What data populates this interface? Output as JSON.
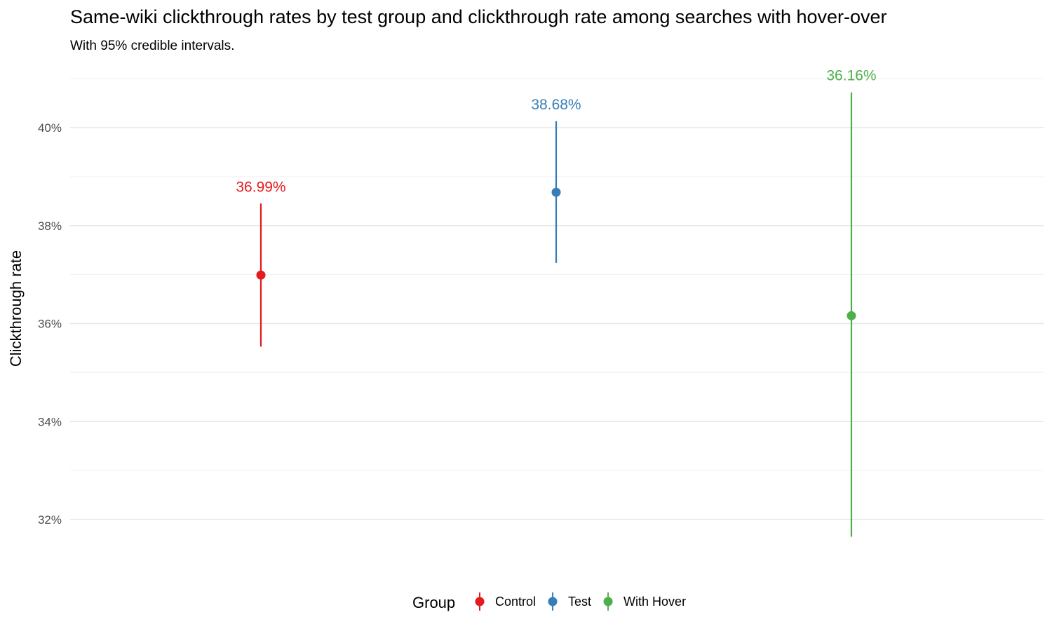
{
  "title": "Same-wiki clickthrough rates by test group and clickthrough rate among searches with hover-over",
  "subtitle": "With 95% credible intervals.",
  "chart_data": {
    "type": "pointrange",
    "title": "Same-wiki clickthrough rates by test group and clickthrough rate among searches with hover-over",
    "subtitle": "With 95% credible intervals.",
    "ylabel": "Clickthrough rate",
    "xlabel": "",
    "ylim": [
      31.2,
      41.0
    ],
    "y_ticks": [
      32,
      34,
      36,
      38,
      40
    ],
    "y_tick_labels": [
      "32%",
      "34%",
      "36%",
      "38%",
      "40%"
    ],
    "grid": true,
    "legend_position": "bottom",
    "legend_title": "Group",
    "series": [
      {
        "name": "Control",
        "color": "#e41a1c",
        "value": 36.99,
        "lower": 35.53,
        "upper": 38.45,
        "label": "36.99%"
      },
      {
        "name": "Test",
        "color": "#377eb8",
        "value": 38.68,
        "lower": 37.24,
        "upper": 40.13,
        "label": "38.68%"
      },
      {
        "name": "With Hover",
        "color": "#4daf4a",
        "value": 36.16,
        "lower": 31.65,
        "upper": 40.72,
        "label": "36.16%"
      }
    ]
  }
}
